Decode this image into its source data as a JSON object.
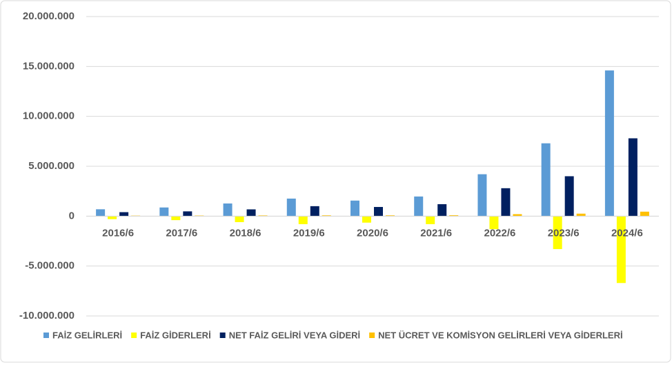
{
  "chart_data": {
    "type": "bar",
    "categories": [
      "2016/6",
      "2017/6",
      "2018/6",
      "2019/6",
      "2020/6",
      "2021/6",
      "2022/6",
      "2023/6",
      "2024/6"
    ],
    "series": [
      {
        "name": "FAİZ GELİRLERİ",
        "color": "#5b9bd5",
        "values": [
          690000,
          870000,
          1270000,
          1760000,
          1560000,
          1970000,
          4200000,
          7300000,
          14600000
        ]
      },
      {
        "name": "FAİZ GİDERLERİ",
        "color": "#ffff00",
        "values": [
          -300000,
          -400000,
          -600000,
          -800000,
          -650000,
          -800000,
          -1300000,
          -3300000,
          -6700000
        ]
      },
      {
        "name": "NET FAİZ GELİRİ VEYA GİDERİ",
        "color": "#002060",
        "values": [
          400000,
          480000,
          680000,
          1000000,
          920000,
          1200000,
          2800000,
          4000000,
          7800000
        ]
      },
      {
        "name": "NET ÜCRET VE KOMİSYON GELİRLERİ VEYA GİDERLERİ",
        "color": "#ffc000",
        "values": [
          50000,
          60000,
          70000,
          80000,
          80000,
          90000,
          200000,
          250000,
          450000
        ]
      }
    ],
    "ylim": [
      -10000000,
      20000000
    ],
    "yticks": [
      {
        "value": -10000000,
        "label": "-10.000.000"
      },
      {
        "value": -5000000,
        "label": "-5.000.000"
      },
      0,
      {
        "value": 5000000,
        "label": "5.000.000"
      },
      {
        "value": 10000000,
        "label": "10.000.000"
      },
      {
        "value": 15000000,
        "label": "15.000.000"
      },
      {
        "value": 20000000,
        "label": "20.000.000"
      }
    ],
    "grid": true,
    "legend": "bottom"
  }
}
